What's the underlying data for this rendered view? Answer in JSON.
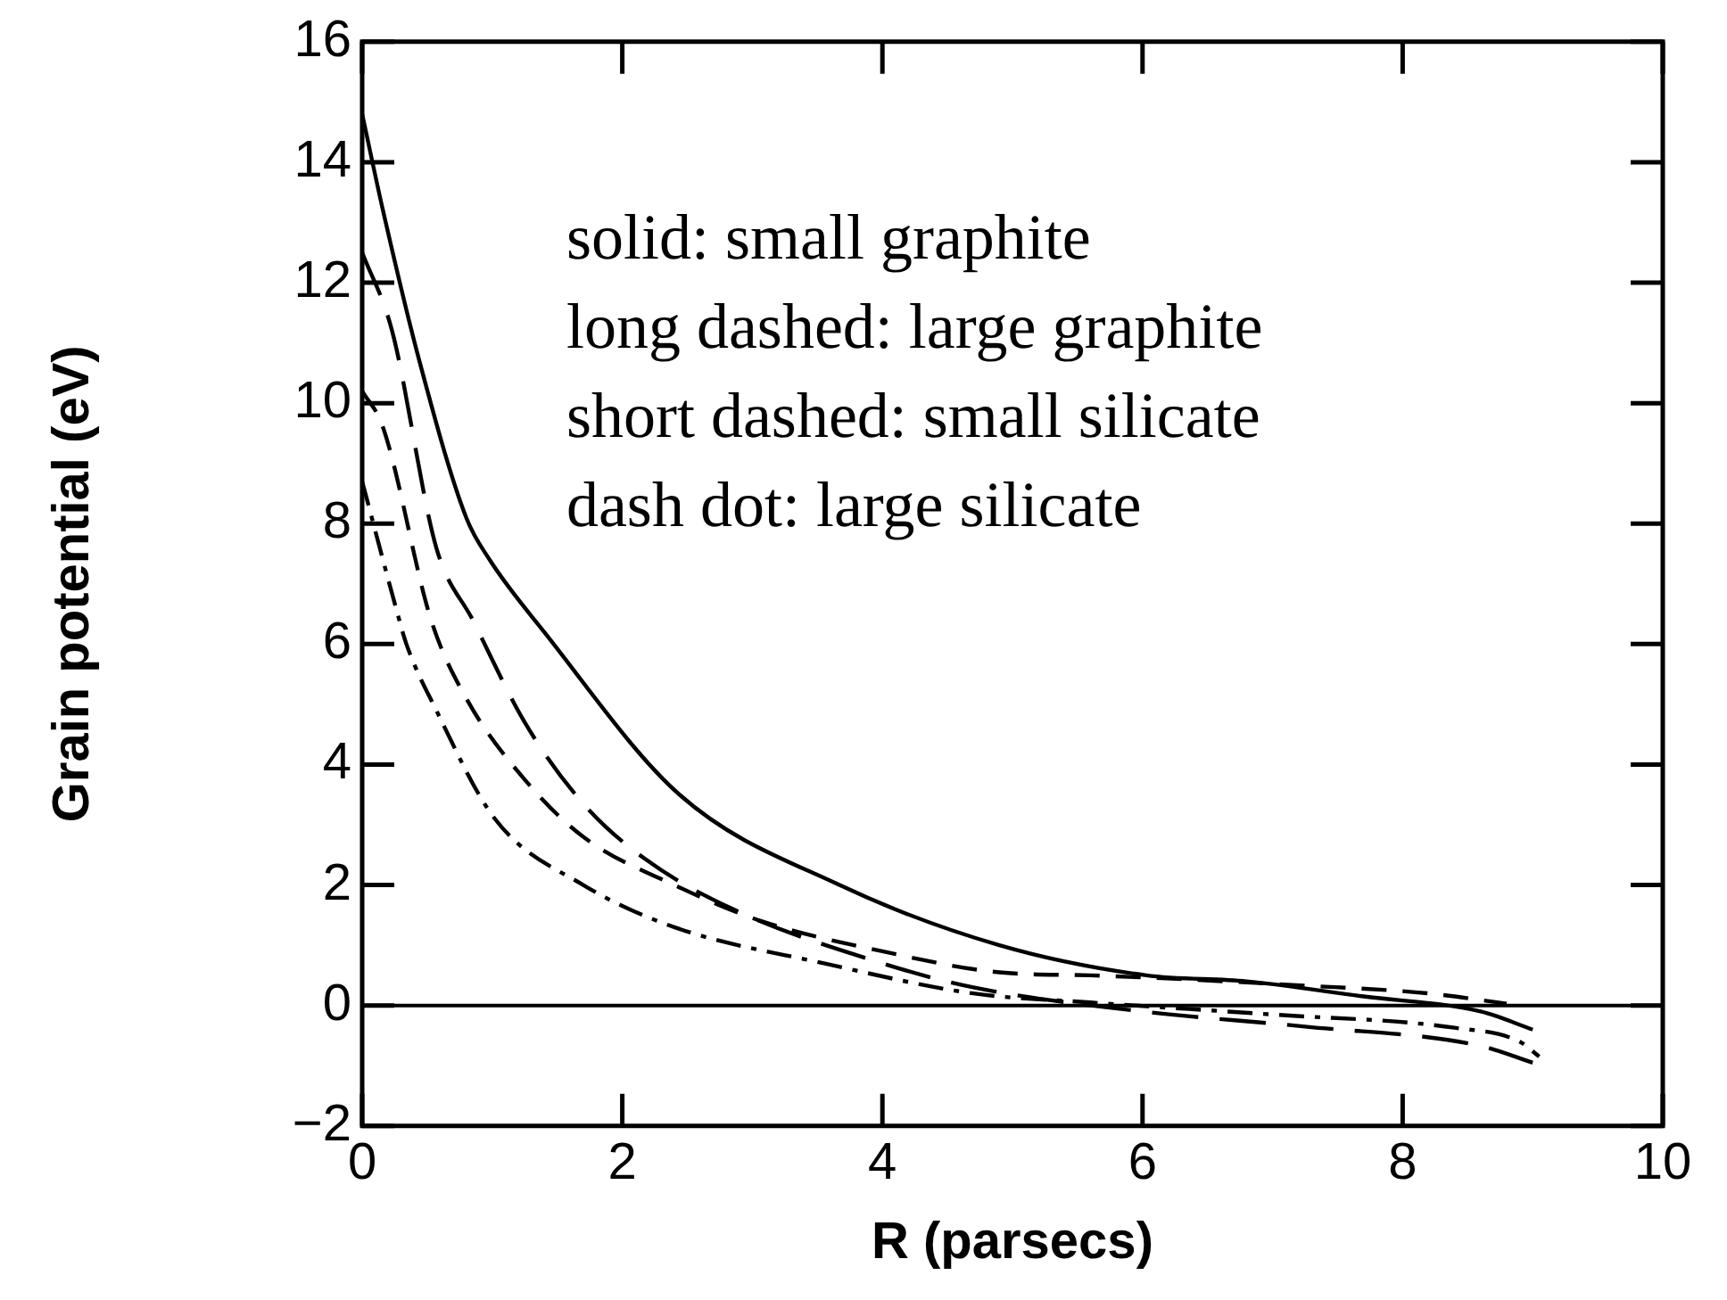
{
  "chart_data": {
    "type": "line",
    "xlabel": "R (parsecs)",
    "ylabel": "Grain potential (eV)",
    "xlim": [
      0,
      10
    ],
    "ylim": [
      -2,
      16
    ],
    "xticks": [
      0,
      2,
      4,
      6,
      8,
      10
    ],
    "yticks": [
      {
        "value": -2,
        "label": "−2"
      },
      0,
      2,
      4,
      6,
      8,
      10,
      12,
      14,
      16
    ],
    "annotations": [
      "solid: small graphite",
      "long dashed: large graphite",
      "short dashed: small silicate",
      "dash dot: large silicate"
    ],
    "ref_lines": [
      {
        "axis": "y",
        "value": 0,
        "color": "#000000",
        "line_style": "solid"
      }
    ],
    "marker": "none",
    "series": [
      {
        "color": "#000000",
        "line_style": "solid",
        "x": [
          0,
          0.16,
          0.44,
          0.8,
          0.98,
          1.4,
          2.44,
          3.67,
          4.9,
          6.03,
          6.8,
          7.7,
          8.6,
          9.0
        ],
        "values": [
          14.8,
          13.2,
          10.7,
          8.1,
          7.4,
          6.2,
          3.5,
          2.0,
          1.0,
          0.5,
          0.4,
          0.15,
          -0.1,
          -0.4
        ]
      },
      {
        "color": "#000000",
        "line_style": "longdashed",
        "x": [
          0,
          0.23,
          0.57,
          0.85,
          1.25,
          1.7,
          2.17,
          2.85,
          4.0,
          4.7,
          6.0,
          7.25,
          8.6,
          9.0
        ],
        "values": [
          12.5,
          11.2,
          7.6,
          6.4,
          4.7,
          3.35,
          2.44,
          1.6,
          0.7,
          0.3,
          -0.1,
          -0.35,
          -0.67,
          -0.95
        ]
      },
      {
        "color": "#000000",
        "line_style": "dashed",
        "x": [
          0,
          0.16,
          0.53,
          0.8,
          1.25,
          1.7,
          2.4,
          3.07,
          4.0,
          4.9,
          5.6,
          7.25,
          8.2,
          8.8
        ],
        "values": [
          10.2,
          9.6,
          6.4,
          5.1,
          3.75,
          2.8,
          2.0,
          1.4,
          0.9,
          0.55,
          0.5,
          0.33,
          0.2,
          0.03
        ]
      },
      {
        "color": "#000000",
        "line_style": "dashdot",
        "x": [
          0,
          0.26,
          0.34,
          0.57,
          1.02,
          1.7,
          2.4,
          3.55,
          4.7,
          5.6,
          7.0,
          8.4,
          8.9,
          9.05
        ],
        "values": [
          8.7,
          6.6,
          6.0,
          4.9,
          3.1,
          2.0,
          1.3,
          0.7,
          0.2,
          0.05,
          -0.15,
          -0.37,
          -0.6,
          -0.85
        ]
      }
    ]
  }
}
